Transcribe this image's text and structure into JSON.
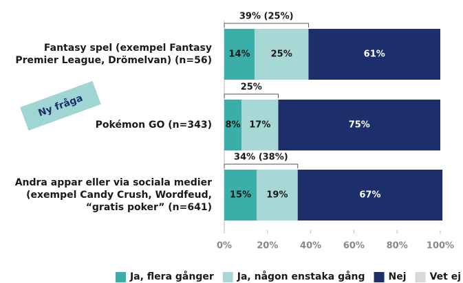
{
  "chart_data": {
    "type": "stacked-barh",
    "categories": [
      "Fantasy spel (exempel Fantasy Premier League, Drömelvan) (n=56)",
      "Pokémon GO (n=343)",
      "Andra appar eller via sociala medier (exempel Candy Crush, Wordfeud, “gratis poker” (n=641)"
    ],
    "series": [
      {
        "name": "Ja, flera gånger",
        "color": "#3aafa9",
        "values": [
          14,
          8,
          15
        ],
        "value_labels": [
          "14%",
          "8%",
          "15%"
        ]
      },
      {
        "name": "Ja, någon enstaka gång",
        "color": "#a8d8d6",
        "values": [
          25,
          17,
          19
        ],
        "value_labels": [
          "25%",
          "17%",
          "19%"
        ]
      },
      {
        "name": "Nej",
        "color": "#1d2f6b",
        "values": [
          61,
          75,
          67
        ],
        "value_labels": [
          "61%",
          "75%",
          "67%"
        ]
      },
      {
        "name": "Vet ej",
        "color": "#d9d9d9",
        "values": [
          0,
          0,
          0
        ]
      }
    ],
    "annotations": [
      "39% (25%)",
      "25%",
      "34% (38%)"
    ],
    "badge": "Ny fråga",
    "xlim": [
      0,
      100
    ],
    "xticks": [
      {
        "value": 0,
        "label": "0%"
      },
      {
        "value": 20,
        "label": "20%"
      },
      {
        "value": 40,
        "label": "40%"
      },
      {
        "value": 60,
        "label": "60%"
      },
      {
        "value": 80,
        "label": "80%"
      },
      {
        "value": 100,
        "label": "100%"
      }
    ],
    "legend": "bottom-right"
  }
}
